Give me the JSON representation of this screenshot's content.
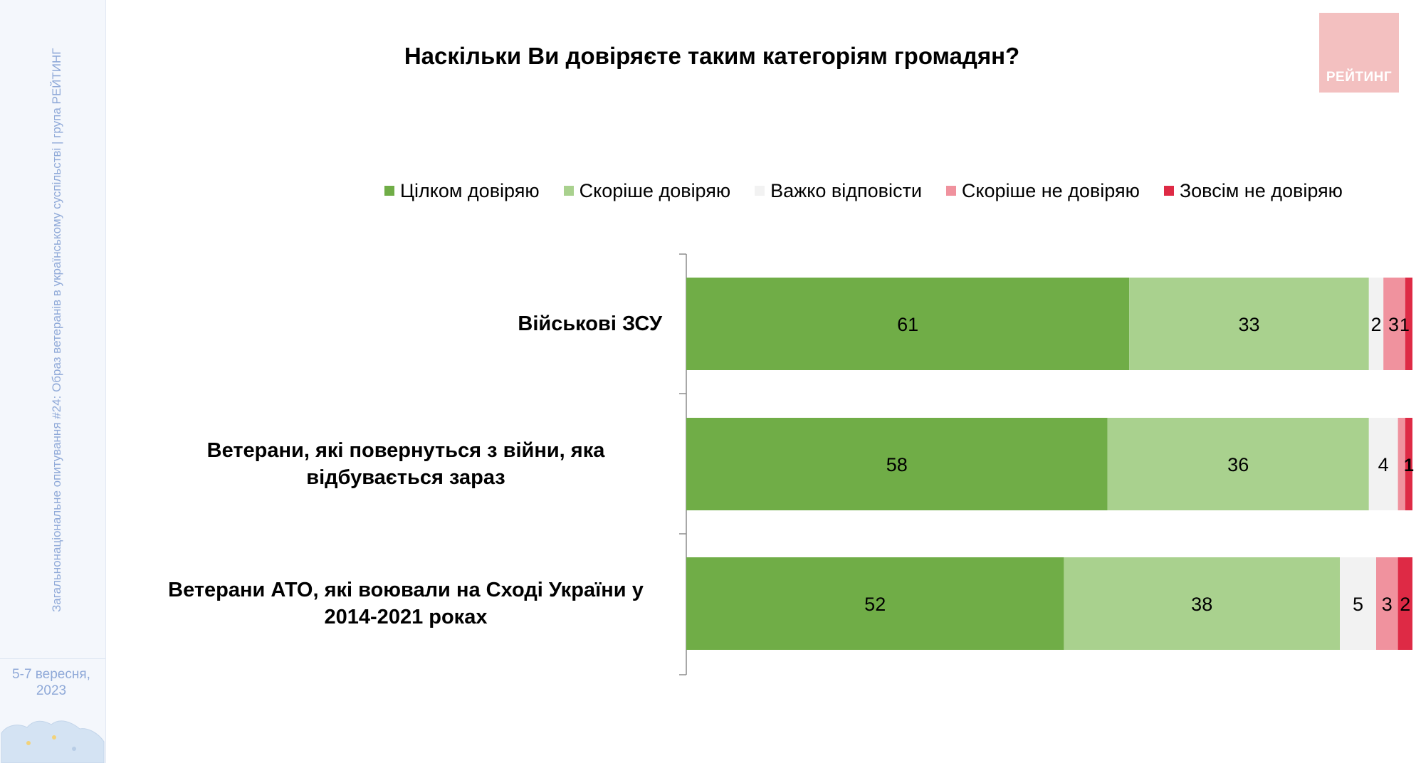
{
  "sidebar": {
    "vertical_text": "Загальнонаціональне опитування #24: Образ ветеранів в українському суспільстві | група РЕЙТИНГ",
    "date_line1": "5-7 вересня,",
    "date_line2": "2023"
  },
  "logo": {
    "text": "РЕЙТИНГ"
  },
  "colors": {
    "full_trust": "#70ad47",
    "rather_trust": "#a9d18e",
    "hard_to_say": "#f2f2f2",
    "rather_distrust": "#f0929e",
    "no_trust": "#de2a45"
  },
  "chart_data": {
    "type": "bar",
    "orientation": "horizontal",
    "stacked": true,
    "title": "Наскільки Ви довіряєте таким категоріям громадян?",
    "categories": [
      "Військові ЗСУ",
      "Ветерани, які повернуться з війни, яка відбувається зараз",
      "Ветерани АТО, які воювали на Сході України у 2014-2021 роках"
    ],
    "series": [
      {
        "name": "Цілком довіряю",
        "color": "#70ad47",
        "values": [
          61,
          58,
          52
        ]
      },
      {
        "name": "Скоріше довіряю",
        "color": "#a9d18e",
        "values": [
          33,
          36,
          38
        ]
      },
      {
        "name": "Важко відповісти",
        "color": "#f2f2f2",
        "values": [
          2,
          4,
          5
        ]
      },
      {
        "name": "Скоріше не довіряю",
        "color": "#f0929e",
        "values": [
          3,
          1,
          3
        ]
      },
      {
        "name": "Зовсім не довіряю",
        "color": "#de2a45",
        "values": [
          1,
          1,
          2
        ]
      }
    ],
    "labels": [
      [
        "61",
        "33",
        "2",
        "3",
        "1"
      ],
      [
        "58",
        "36",
        "4",
        "",
        "1"
      ],
      [
        "52",
        "38",
        "5",
        "3",
        "2"
      ]
    ],
    "xlim": [
      0,
      100
    ],
    "grid": false,
    "legend_position": "top"
  }
}
